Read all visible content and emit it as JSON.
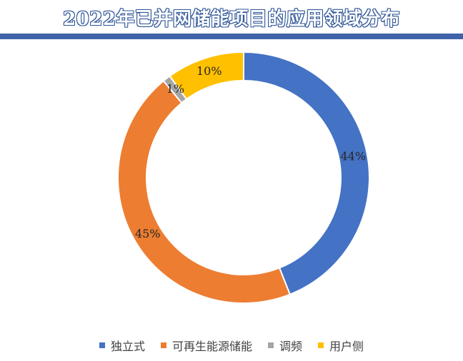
{
  "chart_data": {
    "type": "pie",
    "subtype": "donut",
    "title": "2022年已并网储能项目的应用领域分布",
    "unit": "%",
    "categories": [
      "独立式",
      "可再生能源储能",
      "调频",
      "用户侧"
    ],
    "values": [
      44,
      45,
      1,
      10
    ],
    "data_labels": [
      "44%",
      "45%",
      "1%",
      "10%"
    ],
    "colors": [
      "#4472c4",
      "#ed7d31",
      "#a5a5a5",
      "#ffc000"
    ],
    "start_angle_deg": 0,
    "direction": "clockwise",
    "legend_position": "bottom"
  },
  "header_rule_color": "#3f62a8",
  "title_outline_color": "#2e5597"
}
